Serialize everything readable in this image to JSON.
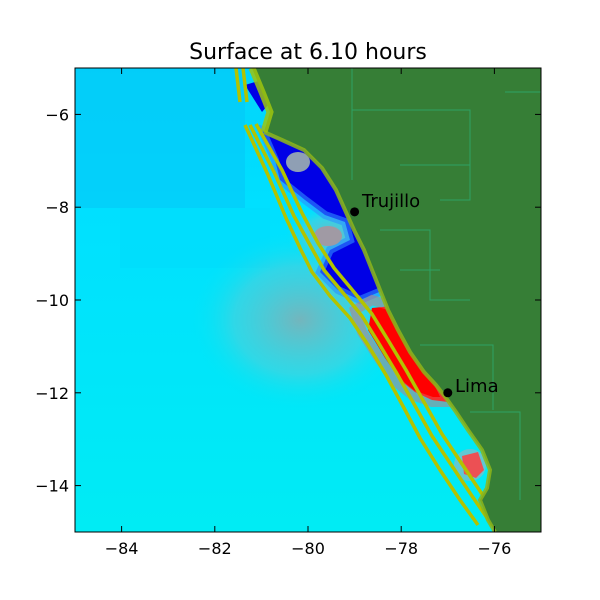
{
  "title": "Surface at 6.10 hours",
  "axes": {
    "x_ticks": [
      -84,
      -82,
      -80,
      -78,
      -76
    ],
    "x_tick_labels": [
      "−84",
      "−82",
      "−80",
      "−78",
      "−76"
    ],
    "y_ticks": [
      -6,
      -8,
      -10,
      -12,
      -14
    ],
    "y_tick_labels": [
      "−6",
      "−8",
      "−10",
      "−12",
      "−14"
    ],
    "xlim": [
      -85,
      -75
    ],
    "ylim": [
      -15,
      -5
    ]
  },
  "cities": [
    {
      "name": "Trujillo",
      "lon": -79.0,
      "lat": -8.1
    },
    {
      "name": "Lima",
      "lon": -77.0,
      "lat": -12.0
    }
  ],
  "colors": {
    "land": "#367e36",
    "ocean_deep": "#00dfff",
    "ocean_mid": "#0fd3f5",
    "trough": "#0000e8",
    "crest": "#ff0000",
    "contour": "#b3c300",
    "background": "#ffffff"
  }
}
